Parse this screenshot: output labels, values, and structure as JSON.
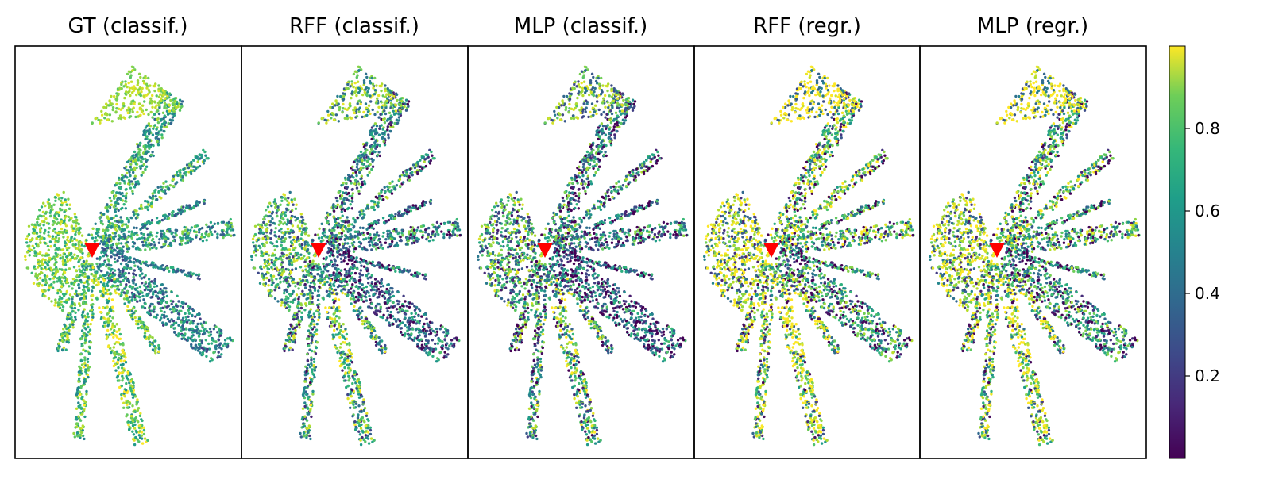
{
  "chart_data": {
    "type": "scatter",
    "description_of_panels": "five scatter maps sharing one colorbar",
    "panels": [
      {
        "title": "GT (classif.)"
      },
      {
        "title": "RFF (classif.)"
      },
      {
        "title": "MLP (classif.)"
      },
      {
        "title": "RFF (regr.)"
      },
      {
        "title": "MLP (regr.)"
      }
    ],
    "marker": {
      "shape": "triangle-down",
      "color": "#ff0000"
    },
    "colorbar": {
      "colormap": "viridis",
      "range": [
        0,
        1
      ],
      "ticks": [
        0.2,
        0.4,
        0.6,
        0.8
      ],
      "tick_labels": [
        "0.2",
        "0.4",
        "0.6",
        "0.8"
      ]
    },
    "colors": {
      "low": "#440154",
      "mid": "#21918c",
      "high": "#fde725"
    }
  }
}
